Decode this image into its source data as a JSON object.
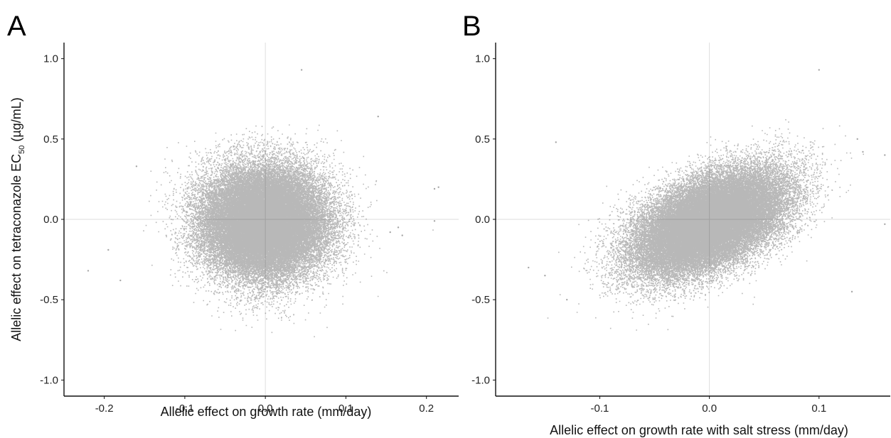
{
  "chart_data": [
    {
      "type": "scatter",
      "panel_label": "A",
      "xlabel": "Allelic effect on growth rate (mm/day)",
      "ylabel_main": "Allelic effect on tetraconazole EC",
      "ylabel_sub": "50",
      "ylabel_unit": " (µg/mL)",
      "xlim": [
        -0.25,
        0.24
      ],
      "ylim": [
        -1.1,
        1.1
      ],
      "xticks": [
        -0.2,
        -0.1,
        0.0,
        0.1,
        0.2
      ],
      "xtick_labels": [
        "-0.2",
        "-0.1",
        "0.0",
        "0.1",
        "0.2"
      ],
      "yticks": [
        -1.0,
        -0.5,
        0.0,
        0.5,
        1.0
      ],
      "ytick_labels": [
        "-1.0",
        "-0.5",
        "0.0",
        "0.5",
        "1.0"
      ],
      "reference_lines": {
        "x": 0.0,
        "y": 0.0
      },
      "point_color": "#000000",
      "distribution": {
        "center_x": -0.002,
        "center_y": -0.02,
        "sd_x": 0.038,
        "sd_y": 0.17,
        "correlation": 0.0,
        "n_points": 45000
      },
      "outliers": [
        {
          "x": 0.045,
          "y": 0.93
        },
        {
          "x": 0.21,
          "y": 0.19
        },
        {
          "x": 0.215,
          "y": 0.2
        },
        {
          "x": -0.22,
          "y": -0.32
        },
        {
          "x": -0.195,
          "y": -0.19
        },
        {
          "x": 0.17,
          "y": -0.1
        },
        {
          "x": 0.165,
          "y": -0.05
        },
        {
          "x": 0.155,
          "y": -0.08
        },
        {
          "x": 0.21,
          "y": -0.01
        },
        {
          "x": -0.16,
          "y": 0.33
        },
        {
          "x": 0.14,
          "y": 0.64
        },
        {
          "x": -0.18,
          "y": -0.38
        }
      ]
    },
    {
      "type": "scatter",
      "panel_label": "B",
      "xlabel": "Allelic effect on growth rate with salt stress (mm/day)",
      "ylabel_main": "",
      "ylabel_sub": "",
      "ylabel_unit": "",
      "xlim": [
        -0.195,
        0.165
      ],
      "ylim": [
        -1.1,
        1.1
      ],
      "xticks": [
        -0.1,
        0.0,
        0.1
      ],
      "xtick_labels": [
        "-0.1",
        "0.0",
        "0.1"
      ],
      "yticks": [
        -1.0,
        -0.5,
        0.0,
        0.5,
        1.0
      ],
      "ytick_labels": [
        "-1.0",
        "-0.5",
        "0.0",
        "0.5",
        "1.0"
      ],
      "reference_lines": {
        "x": 0.0,
        "y": 0.0
      },
      "point_color": "#000000",
      "distribution": {
        "center_x": 0.0,
        "center_y": -0.02,
        "sd_x": 0.034,
        "sd_y": 0.16,
        "correlation": 0.5,
        "n_points": 45000
      },
      "outliers": [
        {
          "x": 0.1,
          "y": 0.93
        },
        {
          "x": -0.14,
          "y": 0.48
        },
        {
          "x": 0.135,
          "y": 0.5
        },
        {
          "x": 0.14,
          "y": 0.42
        },
        {
          "x": 0.16,
          "y": 0.4
        },
        {
          "x": -0.13,
          "y": -0.5
        },
        {
          "x": -0.165,
          "y": -0.3
        },
        {
          "x": -0.15,
          "y": -0.35
        },
        {
          "x": 0.16,
          "y": -0.03
        },
        {
          "x": 0.13,
          "y": -0.45
        }
      ]
    }
  ]
}
